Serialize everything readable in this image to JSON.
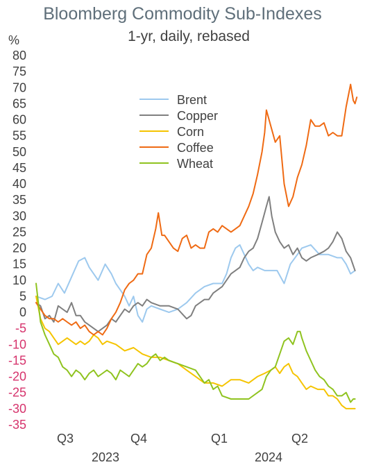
{
  "chart_data": {
    "type": "line",
    "title": "Bloomberg Commodity Sub-Indexes",
    "subtitle": "1-yr, daily, rebased",
    "y_unit": "%",
    "ylim": [
      -35,
      80
    ],
    "y_ticks": [
      80,
      75,
      70,
      65,
      60,
      55,
      50,
      45,
      40,
      35,
      30,
      25,
      20,
      15,
      10,
      5,
      0,
      -5,
      -10,
      -15,
      -20,
      -25,
      -30,
      -35
    ],
    "x_ticks": [
      "Q3",
      "Q4",
      "Q1",
      "Q2"
    ],
    "x_years": [
      "2023",
      "2024"
    ],
    "x_range": [
      0,
      365
    ],
    "legend_placement": "top-center",
    "grid": false,
    "series": [
      {
        "name": "Brent",
        "color": "#9dc9ee",
        "points": [
          [
            0,
            5
          ],
          [
            10,
            4
          ],
          [
            18,
            5
          ],
          [
            25,
            9
          ],
          [
            32,
            6
          ],
          [
            40,
            11
          ],
          [
            48,
            16
          ],
          [
            55,
            17
          ],
          [
            60,
            14
          ],
          [
            65,
            12
          ],
          [
            70,
            10
          ],
          [
            78,
            15
          ],
          [
            85,
            12
          ],
          [
            90,
            9
          ],
          [
            95,
            7
          ],
          [
            100,
            5
          ],
          [
            105,
            2
          ],
          [
            110,
            5
          ],
          [
            115,
            -1
          ],
          [
            120,
            -3
          ],
          [
            125,
            1
          ],
          [
            130,
            2
          ],
          [
            140,
            1
          ],
          [
            150,
            0
          ],
          [
            160,
            1
          ],
          [
            170,
            3
          ],
          [
            180,
            6
          ],
          [
            190,
            8
          ],
          [
            200,
            9
          ],
          [
            210,
            9
          ],
          [
            215,
            12
          ],
          [
            220,
            17
          ],
          [
            225,
            20
          ],
          [
            230,
            21
          ],
          [
            235,
            18
          ],
          [
            240,
            15
          ],
          [
            245,
            13
          ],
          [
            250,
            14
          ],
          [
            258,
            13
          ],
          [
            265,
            13
          ],
          [
            272,
            13
          ],
          [
            280,
            9
          ],
          [
            287,
            15
          ],
          [
            295,
            18
          ],
          [
            300,
            20
          ],
          [
            310,
            21
          ],
          [
            320,
            18
          ],
          [
            330,
            18
          ],
          [
            340,
            17
          ],
          [
            345,
            17
          ],
          [
            350,
            15
          ],
          [
            355,
            12
          ],
          [
            360,
            13
          ]
        ]
      },
      {
        "name": "Copper",
        "color": "#7f7f7f",
        "points": [
          [
            0,
            3
          ],
          [
            5,
            2
          ],
          [
            10,
            -2
          ],
          [
            15,
            -1
          ],
          [
            20,
            -3
          ],
          [
            25,
            2
          ],
          [
            30,
            1
          ],
          [
            35,
            0
          ],
          [
            40,
            3
          ],
          [
            45,
            -1
          ],
          [
            50,
            -1
          ],
          [
            55,
            -3
          ],
          [
            60,
            -4
          ],
          [
            65,
            -5
          ],
          [
            70,
            -6
          ],
          [
            75,
            -5
          ],
          [
            80,
            -4
          ],
          [
            85,
            -2
          ],
          [
            90,
            -3
          ],
          [
            95,
            -1
          ],
          [
            100,
            1
          ],
          [
            105,
            0
          ],
          [
            110,
            2
          ],
          [
            115,
            3
          ],
          [
            120,
            2
          ],
          [
            125,
            4
          ],
          [
            130,
            3
          ],
          [
            140,
            2
          ],
          [
            150,
            2
          ],
          [
            160,
            1
          ],
          [
            170,
            -2
          ],
          [
            175,
            -1
          ],
          [
            180,
            2
          ],
          [
            190,
            4
          ],
          [
            195,
            4
          ],
          [
            200,
            6
          ],
          [
            210,
            8
          ],
          [
            215,
            10
          ],
          [
            220,
            12
          ],
          [
            225,
            13
          ],
          [
            230,
            14
          ],
          [
            235,
            17
          ],
          [
            240,
            19
          ],
          [
            245,
            20
          ],
          [
            250,
            23
          ],
          [
            255,
            28
          ],
          [
            260,
            33
          ],
          [
            263,
            36
          ],
          [
            266,
            30
          ],
          [
            270,
            25
          ],
          [
            275,
            22
          ],
          [
            280,
            20
          ],
          [
            285,
            21
          ],
          [
            290,
            18
          ],
          [
            295,
            20
          ],
          [
            300,
            17
          ],
          [
            305,
            16
          ],
          [
            310,
            17
          ],
          [
            318,
            18
          ],
          [
            325,
            19
          ],
          [
            330,
            20
          ],
          [
            335,
            22
          ],
          [
            340,
            25
          ],
          [
            345,
            23
          ],
          [
            350,
            19
          ],
          [
            355,
            17
          ],
          [
            360,
            13
          ]
        ]
      },
      {
        "name": "Corn",
        "color": "#f5c400",
        "points": [
          [
            0,
            5
          ],
          [
            5,
            -2
          ],
          [
            10,
            -5
          ],
          [
            15,
            -6
          ],
          [
            20,
            -8
          ],
          [
            25,
            -10
          ],
          [
            30,
            -9
          ],
          [
            35,
            -8
          ],
          [
            40,
            -9
          ],
          [
            45,
            -10
          ],
          [
            50,
            -9
          ],
          [
            55,
            -10
          ],
          [
            60,
            -9
          ],
          [
            65,
            -7
          ],
          [
            70,
            -8
          ],
          [
            75,
            -10
          ],
          [
            80,
            -9
          ],
          [
            90,
            -10
          ],
          [
            100,
            -12
          ],
          [
            110,
            -11
          ],
          [
            120,
            -13
          ],
          [
            130,
            -14
          ],
          [
            140,
            -14
          ],
          [
            150,
            -15
          ],
          [
            160,
            -16
          ],
          [
            170,
            -18
          ],
          [
            180,
            -20
          ],
          [
            190,
            -22
          ],
          [
            200,
            -22
          ],
          [
            210,
            -23
          ],
          [
            220,
            -21
          ],
          [
            230,
            -21
          ],
          [
            240,
            -22
          ],
          [
            250,
            -20
          ],
          [
            258,
            -19
          ],
          [
            265,
            -18
          ],
          [
            270,
            -17
          ],
          [
            275,
            -19
          ],
          [
            280,
            -17
          ],
          [
            285,
            -16
          ],
          [
            290,
            -19
          ],
          [
            295,
            -20
          ],
          [
            300,
            -22
          ],
          [
            305,
            -24
          ],
          [
            310,
            -23
          ],
          [
            318,
            -24
          ],
          [
            325,
            -24
          ],
          [
            330,
            -26
          ],
          [
            335,
            -26
          ],
          [
            340,
            -27
          ],
          [
            345,
            -29
          ],
          [
            350,
            -30
          ],
          [
            355,
            -30
          ],
          [
            360,
            -30
          ]
        ]
      },
      {
        "name": "Coffee",
        "color": "#ef6a13",
        "points": [
          [
            0,
            3
          ],
          [
            5,
            1
          ],
          [
            10,
            -1
          ],
          [
            15,
            -2
          ],
          [
            20,
            -2
          ],
          [
            25,
            -3
          ],
          [
            30,
            -2
          ],
          [
            35,
            -3
          ],
          [
            40,
            -4
          ],
          [
            45,
            -3
          ],
          [
            50,
            -5
          ],
          [
            55,
            -4
          ],
          [
            60,
            -6
          ],
          [
            65,
            -7
          ],
          [
            70,
            -6
          ],
          [
            75,
            -7
          ],
          [
            80,
            -5
          ],
          [
            85,
            -2
          ],
          [
            90,
            0
          ],
          [
            95,
            3
          ],
          [
            100,
            7
          ],
          [
            105,
            9
          ],
          [
            110,
            10
          ],
          [
            115,
            12
          ],
          [
            120,
            12
          ],
          [
            125,
            18
          ],
          [
            130,
            20
          ],
          [
            135,
            26
          ],
          [
            138,
            31
          ],
          [
            142,
            24
          ],
          [
            145,
            24
          ],
          [
            150,
            22
          ],
          [
            155,
            20
          ],
          [
            160,
            19
          ],
          [
            165,
            23
          ],
          [
            170,
            24
          ],
          [
            175,
            20
          ],
          [
            180,
            21
          ],
          [
            185,
            20
          ],
          [
            190,
            20
          ],
          [
            195,
            25
          ],
          [
            200,
            26
          ],
          [
            205,
            25
          ],
          [
            210,
            27
          ],
          [
            215,
            26
          ],
          [
            220,
            25
          ],
          [
            225,
            26
          ],
          [
            230,
            27
          ],
          [
            235,
            30
          ],
          [
            240,
            33
          ],
          [
            245,
            37
          ],
          [
            250,
            43
          ],
          [
            255,
            50
          ],
          [
            258,
            56
          ],
          [
            260,
            63
          ],
          [
            265,
            58
          ],
          [
            270,
            53
          ],
          [
            275,
            55
          ],
          [
            280,
            40
          ],
          [
            285,
            33
          ],
          [
            290,
            36
          ],
          [
            295,
            42
          ],
          [
            300,
            46
          ],
          [
            305,
            52
          ],
          [
            310,
            60
          ],
          [
            315,
            58
          ],
          [
            320,
            58
          ],
          [
            325,
            59
          ],
          [
            330,
            55
          ],
          [
            335,
            56
          ],
          [
            340,
            55
          ],
          [
            345,
            55
          ],
          [
            350,
            64
          ],
          [
            355,
            71
          ],
          [
            358,
            66
          ],
          [
            360,
            65
          ],
          [
            362,
            67
          ]
        ]
      },
      {
        "name": "Wheat",
        "color": "#8fc31f",
        "points": [
          [
            0,
            9
          ],
          [
            5,
            -3
          ],
          [
            10,
            -7
          ],
          [
            15,
            -10
          ],
          [
            20,
            -13
          ],
          [
            25,
            -14
          ],
          [
            30,
            -17
          ],
          [
            35,
            -18
          ],
          [
            40,
            -20
          ],
          [
            45,
            -18
          ],
          [
            50,
            -19
          ],
          [
            55,
            -21
          ],
          [
            60,
            -19
          ],
          [
            65,
            -18
          ],
          [
            70,
            -20
          ],
          [
            75,
            -19
          ],
          [
            80,
            -18
          ],
          [
            85,
            -19
          ],
          [
            90,
            -21
          ],
          [
            95,
            -18
          ],
          [
            100,
            -19
          ],
          [
            105,
            -20
          ],
          [
            110,
            -18
          ],
          [
            115,
            -16
          ],
          [
            120,
            -17
          ],
          [
            125,
            -16
          ],
          [
            130,
            -14
          ],
          [
            135,
            -13
          ],
          [
            140,
            -15
          ],
          [
            145,
            -14
          ],
          [
            150,
            -15
          ],
          [
            160,
            -16
          ],
          [
            170,
            -17
          ],
          [
            180,
            -18
          ],
          [
            190,
            -22
          ],
          [
            195,
            -21
          ],
          [
            200,
            -24
          ],
          [
            205,
            -23
          ],
          [
            210,
            -26
          ],
          [
            220,
            -27
          ],
          [
            230,
            -27
          ],
          [
            240,
            -27
          ],
          [
            250,
            -25
          ],
          [
            255,
            -24
          ],
          [
            260,
            -20
          ],
          [
            265,
            -18
          ],
          [
            270,
            -17
          ],
          [
            275,
            -13
          ],
          [
            280,
            -9
          ],
          [
            285,
            -8
          ],
          [
            290,
            -10
          ],
          [
            295,
            -6
          ],
          [
            298,
            -6
          ],
          [
            300,
            -8
          ],
          [
            305,
            -12
          ],
          [
            310,
            -15
          ],
          [
            315,
            -18
          ],
          [
            320,
            -20
          ],
          [
            325,
            -21
          ],
          [
            330,
            -23
          ],
          [
            335,
            -24
          ],
          [
            340,
            -26
          ],
          [
            345,
            -26
          ],
          [
            350,
            -25
          ],
          [
            355,
            -28
          ],
          [
            358,
            -27
          ],
          [
            360,
            -27
          ]
        ]
      }
    ]
  }
}
